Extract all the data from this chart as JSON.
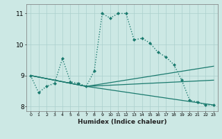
{
  "title": "",
  "xlabel": "Humidex (Indice chaleur)",
  "xlim": [
    -0.5,
    23.5
  ],
  "ylim": [
    7.85,
    11.3
  ],
  "bg_color": "#cce8e4",
  "line_color": "#1a7a6e",
  "grid_color": "#aacfcc",
  "xticks": [
    0,
    1,
    2,
    3,
    4,
    5,
    6,
    7,
    8,
    9,
    10,
    11,
    12,
    13,
    14,
    15,
    16,
    17,
    18,
    19,
    20,
    21,
    22,
    23
  ],
  "yticks": [
    8,
    9,
    10,
    11
  ],
  "series": [
    {
      "x": [
        0,
        1,
        2,
        3,
        4,
        5,
        6,
        7,
        8,
        9,
        10,
        11,
        12,
        13,
        14,
        15,
        16,
        17,
        18,
        19,
        20,
        21,
        22,
        23
      ],
      "y": [
        9.0,
        8.45,
        8.65,
        8.75,
        9.55,
        8.8,
        8.75,
        8.65,
        9.15,
        11.0,
        10.85,
        11.0,
        11.0,
        10.15,
        10.2,
        10.05,
        9.75,
        9.6,
        9.35,
        8.85,
        8.2,
        8.15,
        8.05,
        8.05
      ],
      "style": "dotted",
      "marker": "D",
      "markersize": 2.0,
      "linewidth": 1.0
    },
    {
      "x": [
        0,
        7,
        23
      ],
      "y": [
        9.0,
        8.65,
        8.85
      ],
      "style": "solid",
      "marker": null,
      "markersize": 0,
      "linewidth": 0.9
    },
    {
      "x": [
        0,
        7,
        23
      ],
      "y": [
        9.0,
        8.65,
        9.3
      ],
      "style": "solid",
      "marker": null,
      "markersize": 0,
      "linewidth": 0.9
    },
    {
      "x": [
        0,
        7,
        23
      ],
      "y": [
        9.0,
        8.65,
        8.05
      ],
      "style": "solid",
      "marker": null,
      "markersize": 0,
      "linewidth": 0.9
    }
  ]
}
